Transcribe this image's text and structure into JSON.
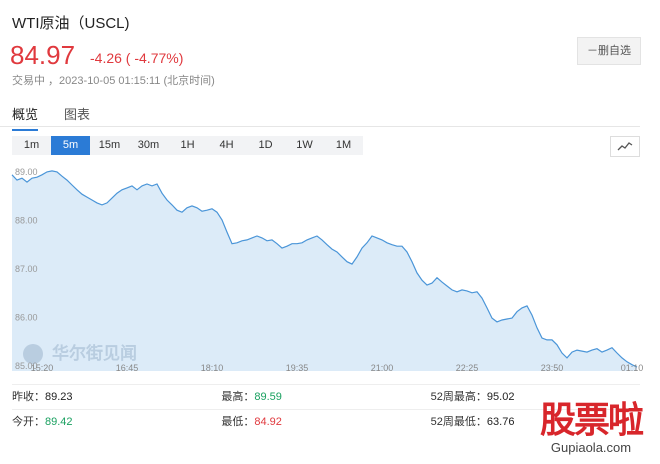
{
  "header": {
    "title": "WTI原油（USCL)",
    "price": "84.97",
    "change": "-4.26 ( -4.77%)",
    "status": "交易中 ，2023-10-05 01:15:11 (北京时间)",
    "button": "－删自选"
  },
  "tabs": {
    "items": [
      "概览",
      "图表"
    ],
    "active": 0
  },
  "intervals": {
    "items": [
      "1m",
      "5m",
      "15m",
      "30m",
      "1H",
      "4H",
      "1D",
      "1W",
      "1M"
    ],
    "active": 1
  },
  "chart_data": {
    "type": "area",
    "line_color": "#4a95d8",
    "fill_color": "#dcebf8",
    "categories": [
      null,
      null,
      null,
      null,
      null,
      null,
      "15:20",
      null,
      null,
      null,
      null,
      null,
      null,
      null,
      null,
      null,
      null,
      null,
      null,
      null,
      null,
      null,
      null,
      "16:45",
      null,
      null,
      null,
      null,
      null,
      null,
      null,
      null,
      null,
      null,
      null,
      null,
      null,
      null,
      null,
      null,
      "18:10",
      null,
      null,
      null,
      null,
      null,
      null,
      null,
      null,
      null,
      null,
      null,
      null,
      null,
      null,
      null,
      null,
      "19:35",
      null,
      null,
      null,
      null,
      null,
      null,
      null,
      null,
      null,
      null,
      null,
      null,
      null,
      null,
      null,
      null,
      "21:00",
      null,
      null,
      null,
      null,
      null,
      null,
      null,
      null,
      null,
      null,
      null,
      null,
      null,
      null,
      null,
      null,
      "22:25",
      null,
      null,
      null,
      null,
      null,
      null,
      null,
      null,
      null,
      null,
      null,
      null,
      null,
      null,
      null,
      null,
      "23:50",
      null,
      null,
      null,
      null,
      null,
      null,
      null,
      null,
      null,
      null,
      null,
      null,
      null,
      null,
      null,
      "01:10",
      null
    ],
    "values": [
      88.94,
      88.83,
      88.87,
      88.79,
      88.87,
      88.89,
      88.94,
      89.0,
      89.02,
      89.0,
      88.91,
      88.83,
      88.73,
      88.63,
      88.54,
      88.48,
      88.42,
      88.36,
      88.32,
      88.36,
      88.46,
      88.56,
      88.63,
      88.67,
      88.71,
      88.63,
      88.71,
      88.75,
      88.71,
      88.75,
      88.56,
      88.42,
      88.32,
      88.21,
      88.17,
      88.26,
      88.3,
      88.26,
      88.19,
      88.21,
      88.24,
      88.17,
      88.01,
      87.76,
      87.52,
      87.54,
      87.58,
      87.6,
      87.64,
      87.68,
      87.64,
      87.58,
      87.6,
      87.52,
      87.43,
      87.47,
      87.52,
      87.52,
      87.54,
      87.6,
      87.64,
      87.68,
      87.6,
      87.5,
      87.41,
      87.35,
      87.25,
      87.15,
      87.1,
      87.25,
      87.43,
      87.54,
      87.68,
      87.64,
      87.6,
      87.54,
      87.5,
      87.47,
      87.47,
      87.35,
      87.15,
      86.92,
      86.77,
      86.67,
      86.71,
      86.82,
      86.73,
      86.65,
      86.57,
      86.53,
      86.57,
      86.55,
      86.51,
      86.53,
      86.4,
      86.2,
      85.99,
      85.91,
      85.95,
      85.97,
      85.99,
      86.12,
      86.2,
      86.24,
      86.05,
      85.79,
      85.58,
      85.54,
      85.54,
      85.44,
      85.27,
      85.17,
      85.29,
      85.33,
      85.31,
      85.29,
      85.33,
      85.36,
      85.29,
      85.33,
      85.38,
      85.27,
      85.17,
      85.09,
      85.03,
      84.98
    ],
    "ylim": [
      84.9,
      89.1
    ],
    "yticks": [
      {
        "value": 85,
        "label": "85.00"
      },
      {
        "value": 86,
        "label": "86.00"
      },
      {
        "value": 87,
        "label": "87.00"
      },
      {
        "value": 88,
        "label": "88.00"
      },
      {
        "value": 89,
        "label": "89.00"
      }
    ],
    "grid": false,
    "watermark": "华尔街见闻"
  },
  "stats": {
    "rows": [
      [
        {
          "label": "昨收：",
          "value": "89.23",
          "color": "#222"
        },
        {
          "label": "最高：",
          "value": "89.59",
          "color": "#1aa060"
        },
        {
          "label": "52周最高：",
          "value": "95.02",
          "color": "#222"
        }
      ],
      [
        {
          "label": "今开：",
          "value": "89.42",
          "color": "#1aa060"
        },
        {
          "label": "最低：",
          "value": "84.92",
          "color": "#e0393e"
        },
        {
          "label": "52周最低：",
          "value": "63.76",
          "color": "#222"
        }
      ]
    ]
  },
  "site_mark": {
    "logo": "股票啦",
    "url": "Gupiaola.com"
  }
}
